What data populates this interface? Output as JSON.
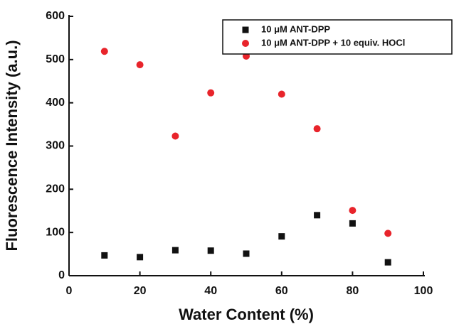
{
  "chart_data": {
    "type": "scatter",
    "xlabel": "Water Content (%)",
    "ylabel": "Fluorescence Intensity (a.u.)",
    "x": [
      10,
      20,
      30,
      40,
      50,
      60,
      70,
      80,
      90
    ],
    "series": [
      {
        "name": "10 μM ANT-DPP",
        "color": "#111111",
        "marker": "square",
        "values": [
          47,
          43,
          59,
          58,
          51,
          91,
          140,
          121,
          31
        ]
      },
      {
        "name": "10 μM ANT-DPP + 10 equiv. HOCl",
        "color": "#e8242b",
        "marker": "circle",
        "values": [
          519,
          488,
          323,
          423,
          508,
          420,
          340,
          151,
          98
        ]
      }
    ],
    "xlim": [
      0,
      100
    ],
    "xticks": [
      0,
      20,
      40,
      60,
      80,
      100
    ],
    "ylim": [
      0,
      600
    ],
    "yticks": [
      0,
      100,
      200,
      300,
      400,
      500,
      600
    ],
    "legend": "upper right"
  }
}
